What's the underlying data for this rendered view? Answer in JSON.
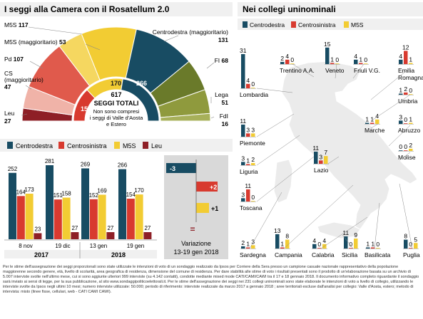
{
  "colors": {
    "centrodestra": "#184c63",
    "centrosinistra": "#d83a2f",
    "m5s": "#f2cc33",
    "leu": "#8e1f26",
    "fi": "#6a7a2a",
    "lega": "#8f9a3d",
    "fdi": "#a7b05a",
    "m5s_magg": "#f5d760",
    "pd": "#e05a4c",
    "cs_magg": "#f0b3a8",
    "band": "#f0f0f0",
    "variazione_bg": "#d9d9d9",
    "map": "#ececec"
  },
  "hemicycle": {
    "title": "I seggi alla Camera con il Rosatellum 2.0",
    "outer_labels": [
      {
        "name": "M5S",
        "value": "117"
      },
      {
        "name": "M5S (maggioritario)",
        "value": "53"
      },
      {
        "name": "Pd",
        "value": "107"
      },
      {
        "name": "CS (maggioritario)",
        "value": "47"
      },
      {
        "name": "Leu",
        "value": "27"
      },
      {
        "name": "Centrodestra (maggioritario)",
        "value": "131"
      },
      {
        "name": "FI",
        "value": "68"
      },
      {
        "name": "Lega",
        "value": "51"
      },
      {
        "name": "FdI",
        "value": "16"
      }
    ],
    "inner_values": {
      "cs": "154",
      "m5s": "170",
      "cd": "266"
    },
    "total_value": "617",
    "total_label": "SEGGI TOTALI",
    "total_note": "Non sono compresi i seggi di Valle d'Aosta e Estero"
  },
  "chart_data": [
    {
      "type": "bar",
      "legend": [
        "Centrodestra",
        "Centrosinistra",
        "M5S",
        "Leu"
      ],
      "categories": [
        "8 nov",
        "19 dic",
        "13 gen",
        "19 gen"
      ],
      "year_groups": [
        {
          "label": "2017",
          "categories": [
            "8 nov",
            "19 dic"
          ]
        },
        {
          "label": "2018",
          "categories": [
            "13 gen",
            "19 gen"
          ]
        }
      ],
      "series": [
        {
          "name": "Centrodestra",
          "values": [
            252,
            281,
            269,
            266
          ]
        },
        {
          "name": "Centrosinistra",
          "values": [
            164,
            151,
            152,
            154
          ]
        },
        {
          "name": "M5S",
          "values": [
            173,
            158,
            169,
            170
          ]
        },
        {
          "name": "Leu",
          "values": [
            23,
            27,
            27,
            27
          ]
        }
      ],
      "variazione": {
        "title": "Variazione",
        "subtitle": "13-19 gen 2018",
        "values": [
          "-3",
          "+2",
          "+1",
          "="
        ]
      }
    },
    {
      "type": "bar",
      "title": "Nei collegi uninominali",
      "legend": [
        "Centrodestra",
        "Centrosinistra",
        "M5S"
      ],
      "regions": [
        {
          "name": "Lombardia",
          "values": [
            31,
            4,
            0
          ]
        },
        {
          "name": "Trentino A.A.",
          "values": [
            2,
            4,
            0
          ]
        },
        {
          "name": "Veneto",
          "values": [
            15,
            1,
            0
          ]
        },
        {
          "name": "Friuli V.G.",
          "values": [
            4,
            1,
            0
          ]
        },
        {
          "name": "Emilia Romagna",
          "values": [
            4,
            12,
            1
          ]
        },
        {
          "name": "Umbria",
          "values": [
            1,
            2,
            0
          ]
        },
        {
          "name": "Marche",
          "values": [
            1,
            1,
            4
          ]
        },
        {
          "name": "Abruzzo",
          "values": [
            3,
            0,
            1
          ]
        },
        {
          "name": "Piemonte",
          "values": [
            11,
            3,
            3
          ]
        },
        {
          "name": "Molise",
          "values": [
            0,
            0,
            2
          ]
        },
        {
          "name": "Liguria",
          "values": [
            3,
            1,
            2
          ]
        },
        {
          "name": "Lazio",
          "values": [
            11,
            3,
            7
          ]
        },
        {
          "name": "Toscana",
          "values": [
            3,
            11,
            0
          ]
        },
        {
          "name": "Sardegna",
          "values": [
            2,
            1,
            3
          ]
        },
        {
          "name": "Campania",
          "values": [
            13,
            1,
            8
          ]
        },
        {
          "name": "Calabria",
          "values": [
            4,
            0,
            4
          ]
        },
        {
          "name": "Sicilia",
          "values": [
            11,
            0,
            9
          ]
        },
        {
          "name": "Basilicata",
          "values": [
            1,
            1,
            0
          ]
        },
        {
          "name": "Puglia",
          "values": [
            8,
            0,
            5
          ]
        }
      ]
    }
  ],
  "footnote": "Per le stime dell'assegnazione dei seggi proporzionali sono state utilizzate le intenzioni di voto di un sondaggio realizzato da Ipsos per Corriere della Sera presso un campione casuale nazionale rappresentativo della popolazione maggiorenne secondo genere, età, livello di scolarità, area geografica di residenza, dimensione del comune di residenza. Per dare stabilità alle stime di voto i risultati presentati sono il prodotto di un'elaborazione basata su un archivio di 5.007 interviste svolte nell'ultimo mese, cui si sono aggiunte ulteriori 999 interviste (su 4.142 contatti), condotte mediante mixed mode CATI/CAMI/CAWI tra il 17 e 18 gennaio 2018. Il documento informativo completo riguardante il sondaggio sarà inviato ai sensi di legge, per la sua pubblicazione, al sito www.sondaggipoliticoelettorali.it. Per le stime dell'assegnazione dei seggi nei 231 collegi uninominali sono state elaborate le intenzioni di voto a livello di collegio, utilizzando le interviste svolte da Ipsos negli ultimi 10 mesi; numero interviste utilizzate: 50.000; periodo di riferimento: interviste realizzate da marzo 2017 a gennaio 2018 ; aree territoriali escluse dall'analisi per collegio: Valle d'Aosta, estero; metodo di intervista: misto (linee fisse, cellulari, web - CATI CAMI CAWI)."
}
